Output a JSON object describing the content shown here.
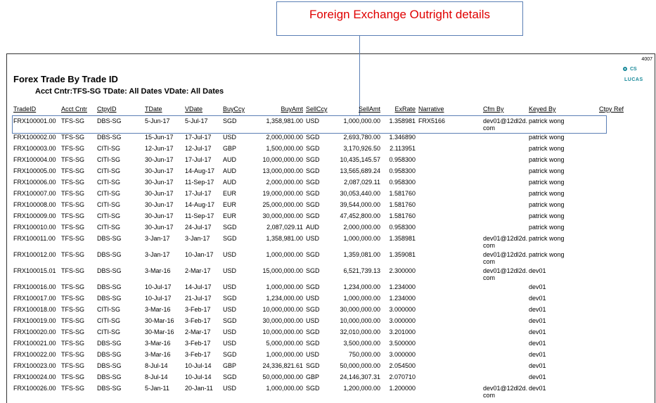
{
  "callout": "Foreign Exchange Outright details",
  "page_number": "4007",
  "logo": {
    "top": "CS",
    "bottom": "LUCAS"
  },
  "report": {
    "title": "Forex Trade By Trade ID",
    "subtitle": "Acct Cntr:TFS-SG TDate: All Dates VDate: All Dates",
    "headers": {
      "trade_id": "TradeID",
      "acct_cntr": "Acct Cntr",
      "ctpy_id": "CtpyID",
      "tdate": "TDate",
      "vdate": "VDate",
      "buy_ccy": "BuyCcy",
      "buy_amt": "BuyAmt",
      "sell_ccy": "SellCcy",
      "sell_amt": "SellAmt",
      "ex_rate": "ExRate",
      "narrative": "Narrative",
      "cfm_by": "Cfm By",
      "keyed_by": "Keyed By",
      "ctpy_ref": "Ctpy Ref"
    },
    "rows": [
      {
        "trade_id": "FRX100001.00",
        "acct_cntr": "TFS-SG",
        "ctpy_id": "DBS-SG",
        "tdate": "5-Jun-17",
        "vdate": "5-Jul-17",
        "buy_ccy": "SGD",
        "buy_amt": "1,358,981.00",
        "sell_ccy": "USD",
        "sell_amt": "1,000,000.00",
        "ex_rate": "1.358981",
        "narrative": "FRX5166",
        "cfm_by": "dev01@12dl2d.com",
        "keyed_by": "patrick wong"
      },
      {
        "trade_id": "FRX100002.00",
        "acct_cntr": "TFS-SG",
        "ctpy_id": "DBS-SG",
        "tdate": "15-Jun-17",
        "vdate": "17-Jul-17",
        "buy_ccy": "USD",
        "buy_amt": "2,000,000.00",
        "sell_ccy": "SGD",
        "sell_amt": "2,693,780.00",
        "ex_rate": "1.346890",
        "keyed_by": "patrick wong"
      },
      {
        "trade_id": "FRX100003.00",
        "acct_cntr": "TFS-SG",
        "ctpy_id": "CITI-SG",
        "tdate": "12-Jun-17",
        "vdate": "12-Jul-17",
        "buy_ccy": "GBP",
        "buy_amt": "1,500,000.00",
        "sell_ccy": "SGD",
        "sell_amt": "3,170,926.50",
        "ex_rate": "2.113951",
        "keyed_by": "patrick wong"
      },
      {
        "trade_id": "FRX100004.00",
        "acct_cntr": "TFS-SG",
        "ctpy_id": "CITI-SG",
        "tdate": "30-Jun-17",
        "vdate": "17-Jul-17",
        "buy_ccy": "AUD",
        "buy_amt": "10,000,000.00",
        "sell_ccy": "SGD",
        "sell_amt": "10,435,145.57",
        "ex_rate": "0.958300",
        "keyed_by": "patrick wong"
      },
      {
        "trade_id": "FRX100005.00",
        "acct_cntr": "TFS-SG",
        "ctpy_id": "CITI-SG",
        "tdate": "30-Jun-17",
        "vdate": "14-Aug-17",
        "buy_ccy": "AUD",
        "buy_amt": "13,000,000.00",
        "sell_ccy": "SGD",
        "sell_amt": "13,565,689.24",
        "ex_rate": "0.958300",
        "keyed_by": "patrick wong"
      },
      {
        "trade_id": "FRX100006.00",
        "acct_cntr": "TFS-SG",
        "ctpy_id": "CITI-SG",
        "tdate": "30-Jun-17",
        "vdate": "11-Sep-17",
        "buy_ccy": "AUD",
        "buy_amt": "2,000,000.00",
        "sell_ccy": "SGD",
        "sell_amt": "2,087,029.11",
        "ex_rate": "0.958300",
        "keyed_by": "patrick wong"
      },
      {
        "trade_id": "FRX100007.00",
        "acct_cntr": "TFS-SG",
        "ctpy_id": "CITI-SG",
        "tdate": "30-Jun-17",
        "vdate": "17-Jul-17",
        "buy_ccy": "EUR",
        "buy_amt": "19,000,000.00",
        "sell_ccy": "SGD",
        "sell_amt": "30,053,440.00",
        "ex_rate": "1.581760",
        "keyed_by": "patrick wong"
      },
      {
        "trade_id": "FRX100008.00",
        "acct_cntr": "TFS-SG",
        "ctpy_id": "CITI-SG",
        "tdate": "30-Jun-17",
        "vdate": "14-Aug-17",
        "buy_ccy": "EUR",
        "buy_amt": "25,000,000.00",
        "sell_ccy": "SGD",
        "sell_amt": "39,544,000.00",
        "ex_rate": "1.581760",
        "keyed_by": "patrick wong"
      },
      {
        "trade_id": "FRX100009.00",
        "acct_cntr": "TFS-SG",
        "ctpy_id": "CITI-SG",
        "tdate": "30-Jun-17",
        "vdate": "11-Sep-17",
        "buy_ccy": "EUR",
        "buy_amt": "30,000,000.00",
        "sell_ccy": "SGD",
        "sell_amt": "47,452,800.00",
        "ex_rate": "1.581760",
        "keyed_by": "patrick wong"
      },
      {
        "trade_id": "FRX100010.00",
        "acct_cntr": "TFS-SG",
        "ctpy_id": "CITI-SG",
        "tdate": "30-Jun-17",
        "vdate": "24-Jul-17",
        "buy_ccy": "SGD",
        "buy_amt": "2,087,029.11",
        "sell_ccy": "AUD",
        "sell_amt": "2,000,000.00",
        "ex_rate": "0.958300",
        "keyed_by": "patrick wong"
      },
      {
        "trade_id": "FRX100011.00",
        "acct_cntr": "TFS-SG",
        "ctpy_id": "DBS-SG",
        "tdate": "3-Jan-17",
        "vdate": "3-Jan-17",
        "buy_ccy": "SGD",
        "buy_amt": "1,358,981.00",
        "sell_ccy": "USD",
        "sell_amt": "1,000,000.00",
        "ex_rate": "1.358981",
        "cfm_by": "dev01@12dl2d.com",
        "keyed_by": "patrick wong"
      },
      {
        "trade_id": "FRX100012.00",
        "acct_cntr": "TFS-SG",
        "ctpy_id": "DBS-SG",
        "tdate": "3-Jan-17",
        "vdate": "10-Jan-17",
        "buy_ccy": "USD",
        "buy_amt": "1,000,000.00",
        "sell_ccy": "SGD",
        "sell_amt": "1,359,081.00",
        "ex_rate": "1.359081",
        "cfm_by": "dev01@12dl2d.com",
        "keyed_by": "patrick wong"
      },
      {
        "trade_id": "FRX100015.01",
        "acct_cntr": "TFS-SG",
        "ctpy_id": "DBS-SG",
        "tdate": "3-Mar-16",
        "vdate": "2-Mar-17",
        "buy_ccy": "USD",
        "buy_amt": "15,000,000.00",
        "sell_ccy": "SGD",
        "sell_amt": "6,521,739.13",
        "ex_rate": "2.300000",
        "cfm_by": "dev01@12dl2d.com",
        "keyed_by": "dev01"
      },
      {
        "trade_id": "FRX100016.00",
        "acct_cntr": "TFS-SG",
        "ctpy_id": "DBS-SG",
        "tdate": "10-Jul-17",
        "vdate": "14-Jul-17",
        "buy_ccy": "USD",
        "buy_amt": "1,000,000.00",
        "sell_ccy": "SGD",
        "sell_amt": "1,234,000.00",
        "ex_rate": "1.234000",
        "keyed_by": "dev01"
      },
      {
        "trade_id": "FRX100017.00",
        "acct_cntr": "TFS-SG",
        "ctpy_id": "DBS-SG",
        "tdate": "10-Jul-17",
        "vdate": "21-Jul-17",
        "buy_ccy": "SGD",
        "buy_amt": "1,234,000.00",
        "sell_ccy": "USD",
        "sell_amt": "1,000,000.00",
        "ex_rate": "1.234000",
        "keyed_by": "dev01"
      },
      {
        "trade_id": "FRX100018.00",
        "acct_cntr": "TFS-SG",
        "ctpy_id": "CITI-SG",
        "tdate": "3-Mar-16",
        "vdate": "3-Feb-17",
        "buy_ccy": "USD",
        "buy_amt": "10,000,000.00",
        "sell_ccy": "SGD",
        "sell_amt": "30,000,000.00",
        "ex_rate": "3.000000",
        "keyed_by": "dev01"
      },
      {
        "trade_id": "FRX100019.00",
        "acct_cntr": "TFS-SG",
        "ctpy_id": "CITI-SG",
        "tdate": "30-Mar-16",
        "vdate": "3-Feb-17",
        "buy_ccy": "SGD",
        "buy_amt": "30,000,000.00",
        "sell_ccy": "USD",
        "sell_amt": "10,000,000.00",
        "ex_rate": "3.000000",
        "keyed_by": "dev01"
      },
      {
        "trade_id": "FRX100020.00",
        "acct_cntr": "TFS-SG",
        "ctpy_id": "CITI-SG",
        "tdate": "30-Mar-16",
        "vdate": "2-Mar-17",
        "buy_ccy": "USD",
        "buy_amt": "10,000,000.00",
        "sell_ccy": "SGD",
        "sell_amt": "32,010,000.00",
        "ex_rate": "3.201000",
        "keyed_by": "dev01"
      },
      {
        "trade_id": "FRX100021.00",
        "acct_cntr": "TFS-SG",
        "ctpy_id": "DBS-SG",
        "tdate": "3-Mar-16",
        "vdate": "3-Feb-17",
        "buy_ccy": "USD",
        "buy_amt": "5,000,000.00",
        "sell_ccy": "SGD",
        "sell_amt": "3,500,000.00",
        "ex_rate": "3.500000",
        "keyed_by": "dev01"
      },
      {
        "trade_id": "FRX100022.00",
        "acct_cntr": "TFS-SG",
        "ctpy_id": "DBS-SG",
        "tdate": "3-Mar-16",
        "vdate": "3-Feb-17",
        "buy_ccy": "SGD",
        "buy_amt": "1,000,000.00",
        "sell_ccy": "USD",
        "sell_amt": "750,000.00",
        "ex_rate": "3.000000",
        "keyed_by": "dev01"
      },
      {
        "trade_id": "FRX100023.00",
        "acct_cntr": "TFS-SG",
        "ctpy_id": "DBS-SG",
        "tdate": "8-Jul-14",
        "vdate": "10-Jul-14",
        "buy_ccy": "GBP",
        "buy_amt": "24,336,821.61",
        "sell_ccy": "SGD",
        "sell_amt": "50,000,000.00",
        "ex_rate": "2.054500",
        "keyed_by": "dev01"
      },
      {
        "trade_id": "FRX100024.00",
        "acct_cntr": "TFS-SG",
        "ctpy_id": "DBS-SG",
        "tdate": "8-Jul-14",
        "vdate": "10-Jul-14",
        "buy_ccy": "SGD",
        "buy_amt": "50,000,000.00",
        "sell_ccy": "GBP",
        "sell_amt": "24,146,307.31",
        "ex_rate": "2.070710",
        "keyed_by": "dev01"
      },
      {
        "trade_id": "FRX100026.00",
        "acct_cntr": "TFS-SG",
        "ctpy_id": "DBS-SG",
        "tdate": "5-Jan-11",
        "vdate": "20-Jan-11",
        "buy_ccy": "USD",
        "buy_amt": "1,000,000.00",
        "sell_ccy": "SGD",
        "sell_amt": "1,200,000.00",
        "ex_rate": "1.200000",
        "cfm_by": "dev01@12dl2d.com",
        "keyed_by": "dev01"
      }
    ]
  }
}
